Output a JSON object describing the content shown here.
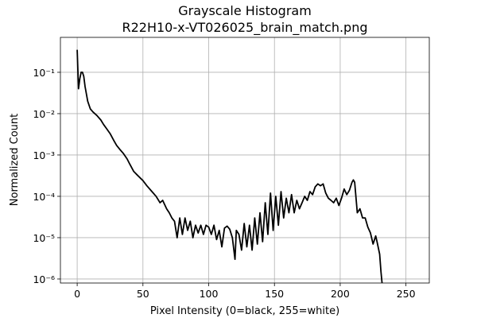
{
  "chart_data": {
    "type": "line",
    "title": "Grayscale Histogram",
    "subtitle": "R22H10-x-VT026025_brain_match.png",
    "x_label": "Pixel Intensity (0=black, 255=white)",
    "y_label": "Normalized Count",
    "y_scale": "log",
    "grid": true,
    "xlim": [
      -12.75,
      267.75
    ],
    "ylim": [
      8e-07,
      0.7
    ],
    "xticks": [
      0,
      50,
      100,
      150,
      200,
      250
    ],
    "yticks": [
      {
        "value": 1e-06,
        "label": "10⁻⁶"
      },
      {
        "value": 1e-05,
        "label": "10⁻⁵"
      },
      {
        "value": 0.0001,
        "label": "10⁻⁴"
      },
      {
        "value": 0.001,
        "label": "10⁻³"
      },
      {
        "value": 0.01,
        "label": "10⁻²"
      },
      {
        "value": 0.1,
        "label": "10⁻¹"
      }
    ],
    "x": [
      0,
      1,
      2,
      3,
      4,
      5,
      6,
      7,
      8,
      10,
      12,
      15,
      18,
      20,
      22,
      25,
      28,
      30,
      33,
      35,
      38,
      40,
      43,
      46,
      50,
      53,
      56,
      60,
      63,
      65,
      68,
      70,
      72,
      74,
      76,
      78,
      80,
      82,
      84,
      86,
      88,
      90,
      92,
      94,
      96,
      98,
      100,
      102,
      104,
      106,
      108,
      110,
      112,
      114,
      116,
      118,
      120,
      121,
      123,
      125,
      127,
      129,
      131,
      133,
      135,
      137,
      139,
      141,
      143,
      145,
      147,
      149,
      151,
      153,
      155,
      157,
      159,
      161,
      163,
      165,
      167,
      169,
      171,
      173,
      175,
      177,
      179,
      181,
      183,
      185,
      187,
      189,
      191,
      193,
      195,
      197,
      199,
      201,
      203,
      205,
      207,
      209,
      210,
      211,
      213,
      215,
      217,
      219,
      221,
      223,
      225,
      227,
      228,
      230,
      231,
      232
    ],
    "series": [
      {
        "color": "#000000",
        "values": [
          0.35,
          0.04,
          0.07,
          0.1,
          0.1,
          0.08,
          0.045,
          0.03,
          0.02,
          0.013,
          0.011,
          0.009,
          0.007,
          0.0055,
          0.0045,
          0.0033,
          0.0022,
          0.0017,
          0.0013,
          0.0011,
          0.0008,
          0.0006,
          0.0004,
          0.00032,
          0.00024,
          0.00018,
          0.00014,
          0.0001,
          7e-05,
          8e-05,
          5e-05,
          4e-05,
          3e-05,
          2.5e-05,
          1e-05,
          3e-05,
          1.2e-05,
          3e-05,
          1.5e-05,
          2.5e-05,
          1e-05,
          2e-05,
          1.3e-05,
          2e-05,
          1.2e-05,
          2e-05,
          1.8e-05,
          1.2e-05,
          2e-05,
          9e-06,
          1.5e-05,
          6e-06,
          1.7e-05,
          1.9e-05,
          1.6e-05,
          1e-05,
          3e-06,
          1.5e-05,
          1.2e-05,
          5e-06,
          2.2e-05,
          6e-06,
          2e-05,
          5e-06,
          3e-05,
          7e-06,
          4e-05,
          8e-06,
          7e-05,
          1.2e-05,
          0.00012,
          1.5e-05,
          0.0001,
          2e-05,
          0.00013,
          3e-05,
          9e-05,
          4e-05,
          0.00011,
          4e-05,
          8e-05,
          5e-05,
          7e-05,
          0.0001,
          8e-05,
          0.00013,
          0.00011,
          0.00017,
          0.0002,
          0.00018,
          0.0002,
          0.00012,
          9e-05,
          8e-05,
          7e-05,
          9e-05,
          6e-05,
          9e-05,
          0.00015,
          0.00011,
          0.00014,
          0.00022,
          0.00025,
          0.00022,
          4e-05,
          5e-05,
          3e-05,
          3e-05,
          1.8e-05,
          1.3e-05,
          7e-06,
          1.1e-05,
          8e-06,
          4e-06,
          1.5e-06,
          7e-07
        ]
      }
    ]
  }
}
